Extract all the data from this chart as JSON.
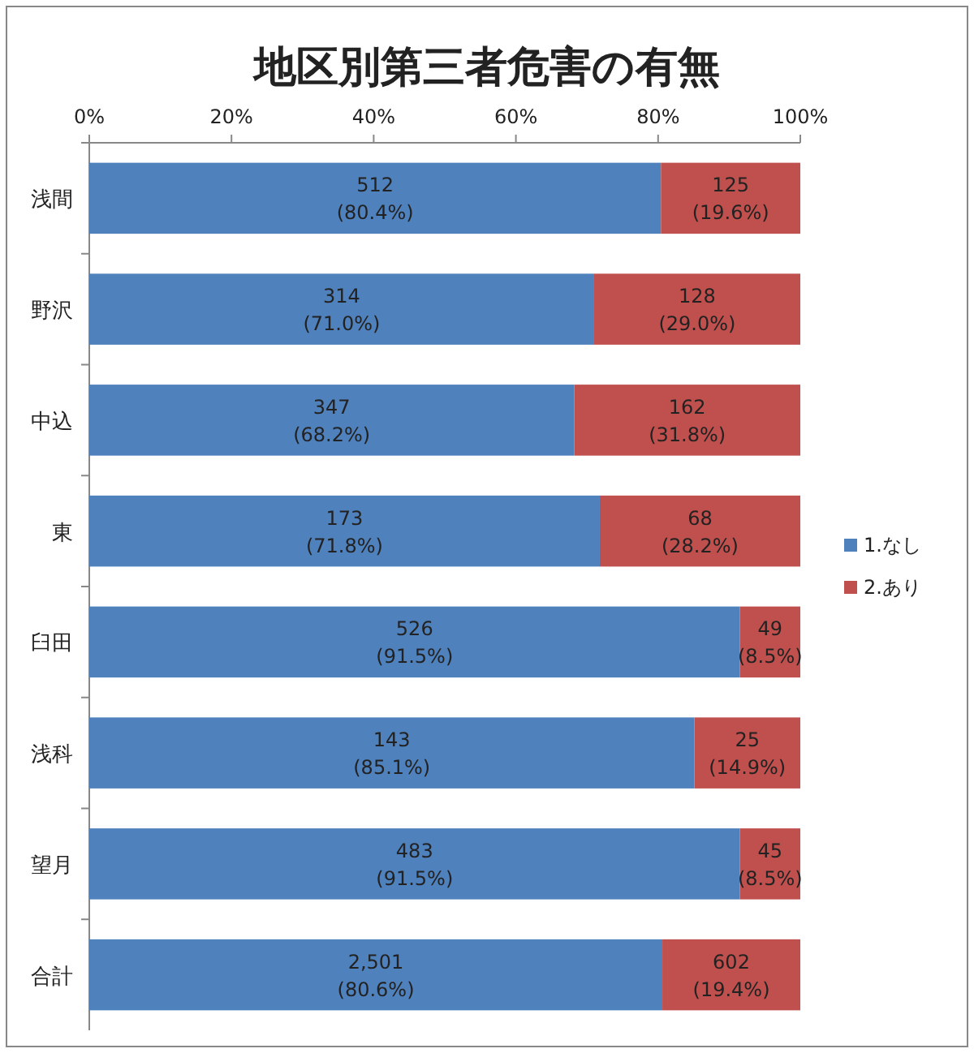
{
  "chart_data": {
    "type": "bar",
    "orientation": "horizontal",
    "stacked": true,
    "title": "地区別第三者危害の有無",
    "categories": [
      "浅間",
      "野沢",
      "中込",
      "東",
      "臼田",
      "浅科",
      "望月",
      "合計"
    ],
    "series": [
      {
        "name": "1.なし",
        "color": "#4f81bd",
        "values": [
          80.4,
          71.0,
          68.2,
          71.8,
          91.5,
          85.1,
          91.5,
          80.6
        ],
        "value_labels": [
          "512\n(80.4%)",
          "314\n(71.0%)",
          "347\n(68.2%)",
          "173\n(71.8%)",
          "526\n(91.5%)",
          "143\n(85.1%)",
          "483\n(91.5%)",
          "2,501\n(80.6%)"
        ]
      },
      {
        "name": "2.あり",
        "color": "#c0504d",
        "values": [
          19.6,
          29.0,
          31.8,
          28.2,
          8.5,
          14.9,
          8.5,
          19.4
        ],
        "value_labels": [
          "125\n(19.6%)",
          "128\n(29.0%)",
          "162\n(31.8%)",
          "68\n(28.2%)",
          "49\n(8.5%)",
          "25\n(14.9%)",
          "45\n(8.5%)",
          "602\n(19.4%)"
        ]
      }
    ],
    "xlim": [
      0,
      100
    ],
    "xticks": [
      {
        "value": 0,
        "label": "0%"
      },
      {
        "value": 20,
        "label": "20%"
      },
      {
        "value": 40,
        "label": "40%"
      },
      {
        "value": 60,
        "label": "60%"
      },
      {
        "value": 80,
        "label": "80%"
      },
      {
        "value": 100,
        "label": "100%"
      }
    ],
    "legend": "right"
  }
}
